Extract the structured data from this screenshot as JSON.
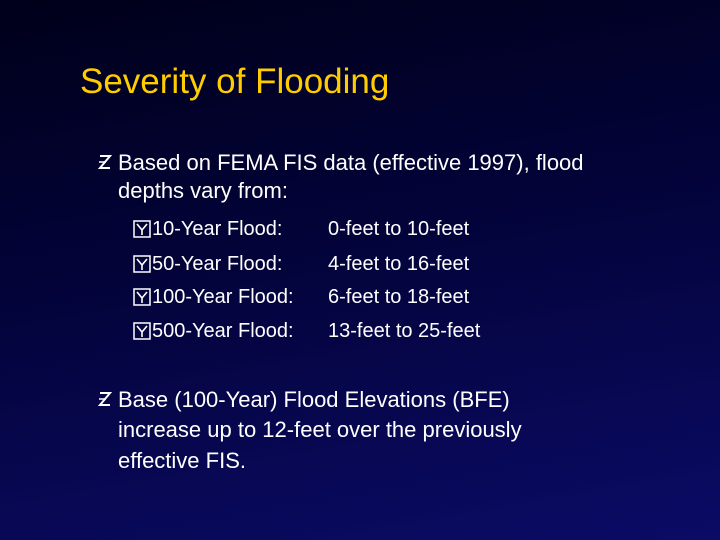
{
  "title": "Severity of Flooding",
  "bullets": [
    {
      "lines": [
        "Based on FEMA FIS data (effective 1997), flood",
        "depths vary from:"
      ],
      "sub_items": [
        {
          "label": "10-Year Flood:",
          "range": "0-feet to 10-feet"
        },
        {
          "label": "50-Year Flood:",
          "range": "4-feet to 16-feet"
        },
        {
          "label": "100-Year Flood:",
          "range": "6-feet to 18-feet"
        },
        {
          "label": "500-Year Flood:",
          "range": "13-feet to 25-feet"
        }
      ]
    },
    {
      "lines": [
        "Base (100-Year) Flood Elevations (BFE)",
        "increase up to 12-feet over the previously",
        "effective FIS."
      ]
    }
  ]
}
